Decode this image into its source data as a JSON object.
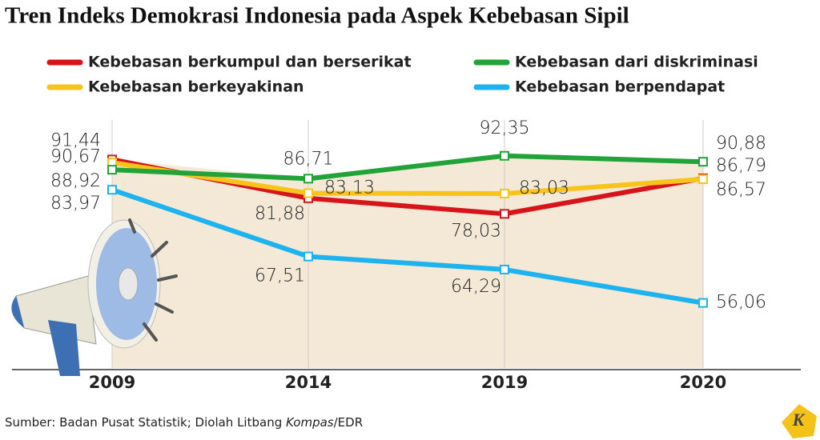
{
  "chart_data": {
    "type": "line",
    "title": "Tren Indeks Demokrasi Indonesia pada Aspek Kebebasan Sipil",
    "categories": [
      "2009",
      "2014",
      "2019",
      "2020"
    ],
    "series": [
      {
        "name": "Kebebasan berkumpul dan berserikat",
        "color": "#d7141a",
        "values": [
          91.44,
          81.88,
          78.03,
          86.79
        ],
        "value_labels": [
          "91,44",
          "81,88",
          "78,03",
          "86,79"
        ]
      },
      {
        "name": "Kebebasan dari diskriminasi",
        "color": "#21a33a",
        "values": [
          88.92,
          86.71,
          92.35,
          90.88
        ],
        "value_labels": [
          "88,92",
          "86,71",
          "92,35",
          "90,88"
        ]
      },
      {
        "name": "Kebebasan berkeyakinan",
        "color": "#f8c41b",
        "values": [
          90.67,
          83.13,
          83.03,
          86.57
        ],
        "value_labels": [
          "90,67",
          "83,13",
          "83,03",
          "86,57"
        ]
      },
      {
        "name": "Kebebasan berpendapat",
        "color": "#1db3ef",
        "values": [
          83.97,
          67.51,
          64.29,
          56.06
        ],
        "value_labels": [
          "83,97",
          "67,51",
          "64,29",
          "56,06"
        ]
      }
    ],
    "ylim": [
      40,
      100
    ],
    "source": [
      "Sumber: Badan Pusat Statistik; Diolah Litbang ",
      "Kompas",
      "/EDR"
    ]
  }
}
